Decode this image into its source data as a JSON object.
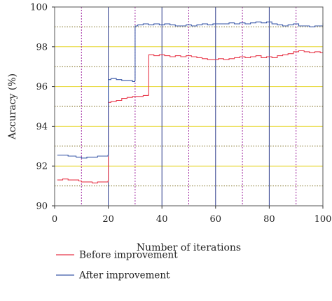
{
  "chart_data": {
    "type": "line",
    "xlabel": "Number of iterations",
    "ylabel": "Accuracy (%)",
    "xlim": [
      0,
      100
    ],
    "ylim": [
      90,
      100
    ],
    "xticks": [
      "0",
      "20",
      "40",
      "60",
      "80",
      "100"
    ],
    "yticks": [
      "90",
      "92",
      "94",
      "96",
      "98",
      "100"
    ],
    "grid": {
      "major_vertical": [
        20,
        40,
        60,
        80,
        100
      ],
      "minor_vertical": [
        10,
        30,
        50,
        70,
        90
      ],
      "major_horizontal": [
        92,
        94,
        96,
        98
      ],
      "minor_horizontal": [
        91,
        93,
        95,
        97,
        99
      ]
    },
    "legend_position": "bottom",
    "series": [
      {
        "name": "Before improvement",
        "color": "#e8384a",
        "x": [
          1,
          3,
          5,
          7,
          9,
          10,
          12,
          14,
          16,
          18,
          19.9,
          20,
          21,
          23,
          25,
          27,
          29,
          31,
          33,
          35,
          35.1,
          37,
          39,
          41,
          43,
          45,
          47,
          49,
          51,
          53,
          55,
          57,
          59,
          61,
          63,
          65,
          67,
          69,
          71,
          73,
          75,
          77,
          79,
          81,
          83,
          85,
          87,
          89,
          91,
          93,
          95,
          97,
          99,
          100
        ],
        "y": [
          91.3,
          91.35,
          91.3,
          91.3,
          91.25,
          91.2,
          91.2,
          91.15,
          91.2,
          91.2,
          91.25,
          95.2,
          95.25,
          95.3,
          95.4,
          95.45,
          95.5,
          95.5,
          95.55,
          95.6,
          97.6,
          97.55,
          97.6,
          97.55,
          97.5,
          97.55,
          97.5,
          97.55,
          97.5,
          97.45,
          97.4,
          97.35,
          97.35,
          97.4,
          97.35,
          97.4,
          97.45,
          97.5,
          97.45,
          97.5,
          97.55,
          97.45,
          97.5,
          97.45,
          97.55,
          97.6,
          97.65,
          97.75,
          97.8,
          97.75,
          97.7,
          97.75,
          97.7,
          97.7
        ]
      },
      {
        "name": "After improvement",
        "color": "#3a58a8",
        "x": [
          1,
          3,
          5,
          7,
          8,
          10,
          12,
          14,
          16,
          18,
          19.9,
          20,
          21,
          23,
          25,
          27,
          29,
          29.9,
          30,
          31,
          33,
          35,
          37,
          39,
          41,
          43,
          45,
          47,
          49,
          51,
          53,
          55,
          57,
          59,
          61,
          63,
          65,
          67,
          69,
          71,
          73,
          75,
          77,
          79,
          81,
          83,
          85,
          87,
          89,
          91,
          93,
          95,
          97,
          99,
          100
        ],
        "y": [
          92.55,
          92.55,
          92.5,
          92.5,
          92.45,
          92.4,
          92.45,
          92.45,
          92.5,
          92.5,
          92.55,
          96.35,
          96.4,
          96.35,
          96.3,
          96.3,
          96.25,
          96.3,
          99.05,
          99.1,
          99.15,
          99.1,
          99.15,
          99.1,
          99.15,
          99.1,
          99.05,
          99.05,
          99.1,
          99.05,
          99.1,
          99.15,
          99.1,
          99.15,
          99.15,
          99.15,
          99.2,
          99.15,
          99.2,
          99.15,
          99.2,
          99.25,
          99.2,
          99.25,
          99.15,
          99.1,
          99.05,
          99.1,
          99.15,
          99.05,
          99.05,
          99.0,
          99.05,
          99.05,
          99.2
        ]
      }
    ]
  }
}
